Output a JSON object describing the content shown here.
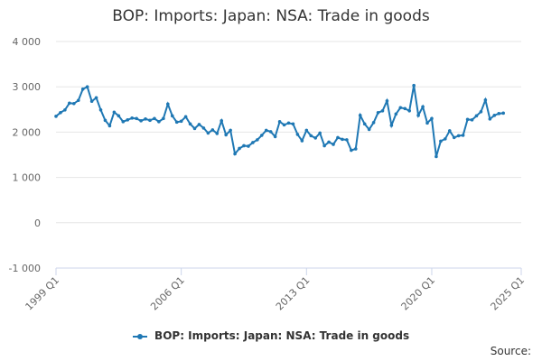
{
  "chart_data": {
    "type": "line",
    "title": "BOP: Imports: Japan: NSA: Trade in goods",
    "xlabel": "",
    "ylabel": "",
    "x_ticks": [
      "1999 Q1",
      "2006 Q1",
      "2013 Q1",
      "2020 Q1",
      "2025 Q1"
    ],
    "y_ticks": [
      "-1 000",
      "0",
      "1 000",
      "2 000",
      "3 000",
      "4 000"
    ],
    "ylim": [
      -1000,
      4000
    ],
    "grid": true,
    "legend_position": "bottom",
    "series": [
      {
        "name": "BOP: Imports: Japan: NSA: Trade in goods",
        "color": "#1f78b4",
        "x": [
          "1999 Q1",
          "1999 Q2",
          "1999 Q3",
          "1999 Q4",
          "2000 Q1",
          "2000 Q2",
          "2000 Q3",
          "2000 Q4",
          "2001 Q1",
          "2001 Q2",
          "2001 Q3",
          "2001 Q4",
          "2002 Q1",
          "2002 Q2",
          "2002 Q3",
          "2002 Q4",
          "2003 Q1",
          "2003 Q2",
          "2003 Q3",
          "2003 Q4",
          "2004 Q1",
          "2004 Q2",
          "2004 Q3",
          "2004 Q4",
          "2005 Q1",
          "2005 Q2",
          "2005 Q3",
          "2005 Q4",
          "2006 Q1",
          "2006 Q2",
          "2006 Q3",
          "2006 Q4",
          "2007 Q1",
          "2007 Q2",
          "2007 Q3",
          "2007 Q4",
          "2008 Q1",
          "2008 Q2",
          "2008 Q3",
          "2008 Q4",
          "2009 Q1",
          "2009 Q2",
          "2009 Q3",
          "2009 Q4",
          "2010 Q1",
          "2010 Q2",
          "2010 Q3",
          "2010 Q4",
          "2011 Q1",
          "2011 Q2",
          "2011 Q3",
          "2011 Q4",
          "2012 Q1",
          "2012 Q2",
          "2012 Q3",
          "2012 Q4",
          "2013 Q1",
          "2013 Q2",
          "2013 Q3",
          "2013 Q4",
          "2014 Q1",
          "2014 Q2",
          "2014 Q3",
          "2014 Q4",
          "2015 Q1",
          "2015 Q2",
          "2015 Q3",
          "2015 Q4",
          "2016 Q1",
          "2016 Q2",
          "2016 Q3",
          "2016 Q4",
          "2017 Q1",
          "2017 Q2",
          "2017 Q3",
          "2017 Q4",
          "2018 Q1",
          "2018 Q2",
          "2018 Q3",
          "2018 Q4",
          "2019 Q1",
          "2019 Q2",
          "2019 Q3",
          "2019 Q4",
          "2020 Q1",
          "2020 Q2",
          "2020 Q3",
          "2020 Q4",
          "2021 Q1",
          "2021 Q2",
          "2021 Q3",
          "2021 Q4",
          "2022 Q1",
          "2022 Q2",
          "2022 Q3",
          "2022 Q4",
          "2023 Q1",
          "2023 Q2",
          "2023 Q3",
          "2023 Q4",
          "2024 Q1"
        ],
        "values": [
          2350,
          2430,
          2490,
          2640,
          2630,
          2700,
          2950,
          3000,
          2680,
          2760,
          2490,
          2260,
          2140,
          2440,
          2360,
          2230,
          2270,
          2310,
          2300,
          2250,
          2290,
          2260,
          2300,
          2230,
          2300,
          2620,
          2360,
          2220,
          2240,
          2340,
          2180,
          2080,
          2170,
          2090,
          1980,
          2050,
          1970,
          2250,
          1940,
          2040,
          1520,
          1640,
          1700,
          1690,
          1770,
          1830,
          1930,
          2040,
          2010,
          1900,
          2230,
          2160,
          2200,
          2180,
          1950,
          1810,
          2040,
          1920,
          1870,
          1980,
          1700,
          1780,
          1730,
          1880,
          1840,
          1830,
          1600,
          1630,
          2370,
          2180,
          2060,
          2210,
          2430,
          2470,
          2690,
          2150,
          2400,
          2540,
          2520,
          2470,
          3030,
          2370,
          2560,
          2200,
          2300,
          1460,
          1800,
          1850,
          2030,
          1880,
          1920,
          1930,
          2280,
          2270,
          2360,
          2450,
          2710,
          2290,
          2370,
          2410,
          2420
        ]
      }
    ]
  },
  "source_label": "Source:"
}
